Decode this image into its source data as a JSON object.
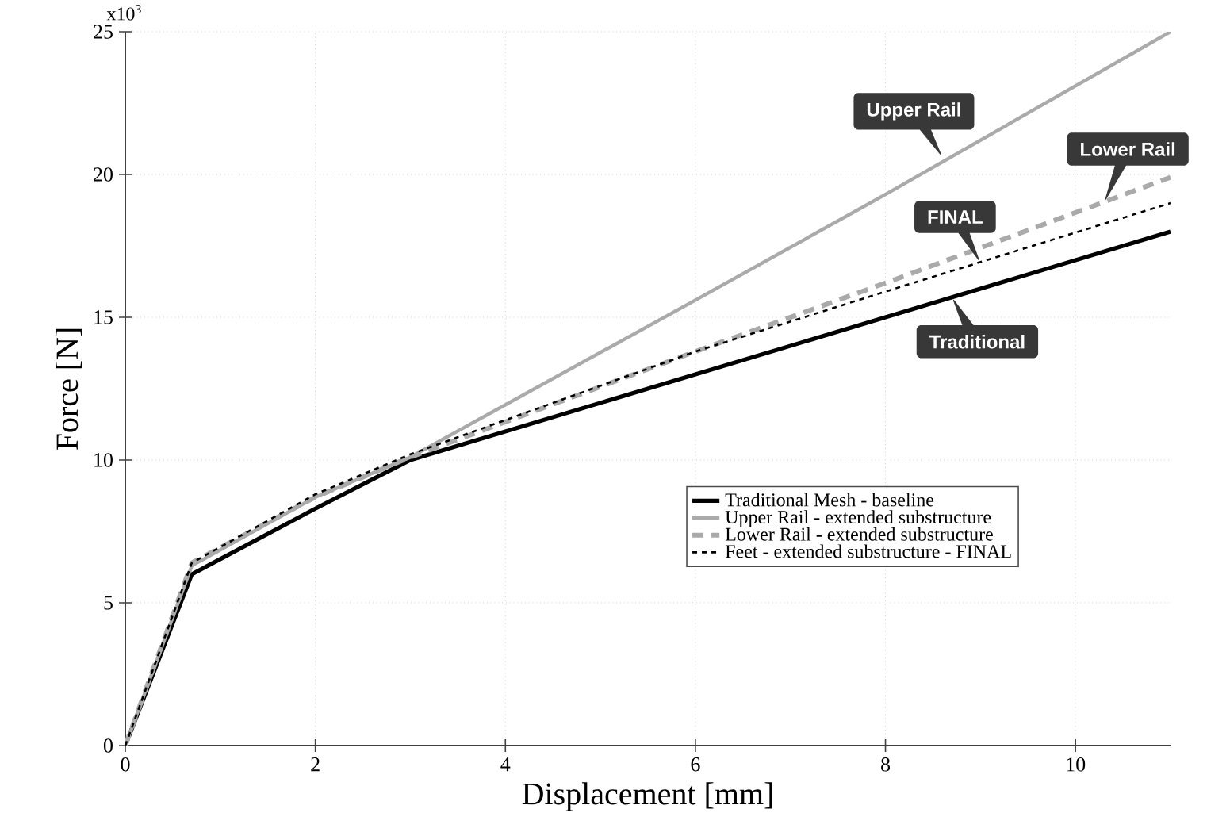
{
  "chart_data": {
    "type": "line",
    "xlabel": "Displacement [mm]",
    "ylabel": "Force [N]",
    "xlim": [
      0,
      11
    ],
    "ylim": [
      0,
      25
    ],
    "xticks": [
      0,
      2,
      4,
      6,
      8,
      10
    ],
    "yticks": [
      0,
      5,
      10,
      15,
      20,
      25
    ],
    "grid": true,
    "legend": "bottom right",
    "x": [
      0,
      0.7,
      2,
      3,
      6,
      8,
      11
    ],
    "series": [
      {
        "name": "Traditional Mesh - baseline",
        "color": "#000000",
        "line_style": "solid",
        "values": [
          0,
          6.0,
          8.3,
          10.0,
          13.0,
          15.0,
          18.0
        ]
      },
      {
        "name": "Upper Rail - extended substructure",
        "color": "#aaaaaa",
        "line_style": "solid",
        "values": [
          0,
          6.3,
          8.7,
          10.1,
          15.6,
          19.3,
          25.0
        ]
      },
      {
        "name": "Lower Rail - extended substructure",
        "color": "#aaaaaa",
        "line_style": "dashed",
        "values": [
          0,
          6.4,
          8.7,
          10.1,
          13.8,
          16.2,
          19.9
        ]
      },
      {
        "name": "Feet - extended substructure - FINAL",
        "color": "#000000",
        "line_style": "dashed",
        "values": [
          0,
          6.4,
          8.8,
          10.2,
          13.8,
          15.9,
          19.0
        ]
      }
    ],
    "annotations": [
      "x10$^{3}$",
      {
        "text": "Upper Rail",
        "x": 8.6,
        "y": 20.6
      },
      {
        "text": "Lower Rail",
        "x": 10.3,
        "y": 19.0
      },
      {
        "text": "FINAL",
        "x": 9.0,
        "y": 16.9
      },
      {
        "text": "Traditional",
        "x": 8.7,
        "y": 15.7
      }
    ]
  }
}
